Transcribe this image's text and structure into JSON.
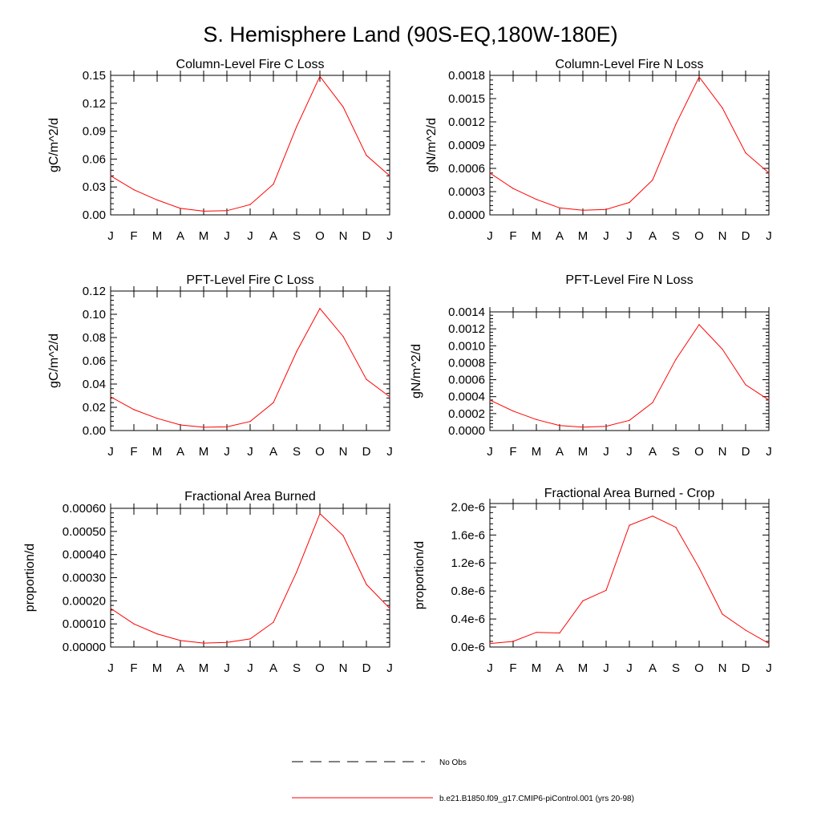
{
  "page_title": "S. Hemisphere Land (90S-EQ,180W-180E)",
  "colors": {
    "model_line": "#ff0000",
    "obs_line": "#000000",
    "axis": "#000000"
  },
  "legend": {
    "items": [
      {
        "label": "No Obs",
        "style": "dashed",
        "color": "#000000"
      },
      {
        "label": "b.e21.B1850.f09_g17.CMIP6-piControl.001 (yrs 20-98)",
        "style": "solid",
        "color": "#ff0000"
      }
    ]
  },
  "chart_data": [
    {
      "type": "line",
      "title": "Column-Level Fire C Loss",
      "ylabel": "gC/m^2/d",
      "xlabel": "",
      "categories": [
        "J",
        "F",
        "M",
        "A",
        "M",
        "J",
        "J",
        "A",
        "S",
        "O",
        "N",
        "D",
        "J"
      ],
      "ylim": [
        0,
        0.15
      ],
      "yticks": [
        "0.00",
        "0.03",
        "0.06",
        "0.09",
        "0.12",
        "0.15"
      ],
      "ytick_values": [
        0,
        0.03,
        0.06,
        0.09,
        0.12,
        0.15
      ],
      "series": [
        {
          "name": "b.e21.B1850.f09_g17.CMIP6-piControl.001 (yrs 20-98)",
          "values": [
            0.042,
            0.027,
            0.016,
            0.007,
            0.004,
            0.0045,
            0.011,
            0.033,
            0.095,
            0.149,
            0.116,
            0.064,
            0.042
          ]
        }
      ]
    },
    {
      "type": "line",
      "title": "Column-Level Fire N Loss",
      "ylabel": "gN/m^2/d",
      "xlabel": "",
      "categories": [
        "J",
        "F",
        "M",
        "A",
        "M",
        "J",
        "J",
        "A",
        "S",
        "O",
        "N",
        "D",
        "J"
      ],
      "ylim": [
        0,
        0.0018
      ],
      "yticks": [
        "0.0000",
        "0.0003",
        "0.0006",
        "0.0009",
        "0.0012",
        "0.0015",
        "0.0018"
      ],
      "ytick_values": [
        0,
        0.0003,
        0.0006,
        0.0009,
        0.0012,
        0.0015,
        0.0018
      ],
      "series": [
        {
          "name": "b.e21.B1850.f09_g17.CMIP6-piControl.001 (yrs 20-98)",
          "values": [
            0.00054,
            0.00034,
            0.0002,
            9e-05,
            6e-05,
            7e-05,
            0.00016,
            0.00045,
            0.00117,
            0.00178,
            0.00138,
            0.0008,
            0.00054
          ]
        }
      ]
    },
    {
      "type": "line",
      "title": "PFT-Level Fire C Loss",
      "ylabel": "gC/m^2/d",
      "xlabel": "",
      "categories": [
        "J",
        "F",
        "M",
        "A",
        "M",
        "J",
        "J",
        "A",
        "S",
        "O",
        "N",
        "D",
        "J"
      ],
      "ylim": [
        0,
        0.12
      ],
      "yticks": [
        "0.00",
        "0.02",
        "0.04",
        "0.06",
        "0.08",
        "0.10",
        "0.12"
      ],
      "ytick_values": [
        0,
        0.02,
        0.04,
        0.06,
        0.08,
        0.1,
        0.12
      ],
      "series": [
        {
          "name": "b.e21.B1850.f09_g17.CMIP6-piControl.001 (yrs 20-98)",
          "values": [
            0.029,
            0.018,
            0.0105,
            0.0048,
            0.0028,
            0.0032,
            0.0078,
            0.024,
            0.068,
            0.105,
            0.081,
            0.044,
            0.029
          ]
        }
      ]
    },
    {
      "type": "line",
      "title": "PFT-Level Fire N Loss",
      "ylabel": "gN/m^2/d",
      "xlabel": "",
      "categories": [
        "J",
        "F",
        "M",
        "A",
        "M",
        "J",
        "J",
        "A",
        "S",
        "O",
        "N",
        "D",
        "J"
      ],
      "ylim": [
        0,
        0.0014
      ],
      "yticks": [
        "0.0000",
        "0.0002",
        "0.0004",
        "0.0006",
        "0.0008",
        "0.0010",
        "0.0012",
        "0.0014"
      ],
      "ytick_values": [
        0,
        0.0002,
        0.0004,
        0.0006,
        0.0008,
        0.001,
        0.0012,
        0.0014
      ],
      "series": [
        {
          "name": "b.e21.B1850.f09_g17.CMIP6-piControl.001 (yrs 20-98)",
          "values": [
            0.00036,
            0.00023,
            0.00013,
            6e-05,
            4e-05,
            5e-05,
            0.00012,
            0.00033,
            0.00084,
            0.00125,
            0.00096,
            0.00054,
            0.00036
          ]
        }
      ]
    },
    {
      "type": "line",
      "title": "Fractional Area Burned",
      "ylabel": "proportion/d",
      "xlabel": "",
      "categories": [
        "J",
        "F",
        "M",
        "A",
        "M",
        "J",
        "J",
        "A",
        "S",
        "O",
        "N",
        "D",
        "J"
      ],
      "ylim": [
        0,
        0.0006
      ],
      "yticks": [
        "0.00000",
        "0.00010",
        "0.00020",
        "0.00030",
        "0.00040",
        "0.00050",
        "0.00060"
      ],
      "ytick_values": [
        0,
        0.0001,
        0.0002,
        0.0003,
        0.0004,
        0.0005,
        0.0006
      ],
      "series": [
        {
          "name": "b.e21.B1850.f09_g17.CMIP6-piControl.001 (yrs 20-98)",
          "values": [
            0.000167,
            0.0001,
            5.7e-05,
            2.8e-05,
            1.7e-05,
            2e-05,
            3.5e-05,
            0.000107,
            0.000325,
            0.000577,
            0.000482,
            0.000271,
            0.000167
          ]
        }
      ]
    },
    {
      "type": "line",
      "title": "Fractional Area Burned - Crop",
      "ylabel": "proportion/d",
      "xlabel": "",
      "categories": [
        "J",
        "F",
        "M",
        "A",
        "M",
        "J",
        "J",
        "A",
        "S",
        "O",
        "N",
        "D",
        "J"
      ],
      "ylim": [
        0,
        2.05e-06
      ],
      "yticks": [
        "0.0e-6",
        "0.4e-6",
        "0.8e-6",
        "1.2e-6",
        "1.6e-6",
        "2.0e-6"
      ],
      "ytick_values": [
        0,
        4e-07,
        8e-07,
        1.2e-06,
        1.6e-06,
        2e-06
      ],
      "series": [
        {
          "name": "b.e21.B1850.f09_g17.CMIP6-piControl.001 (yrs 20-98)",
          "values": [
            5e-08,
            8e-08,
            2.1e-07,
            2e-07,
            6.6e-07,
            8.1e-07,
            1.74e-06,
            1.87e-06,
            1.71e-06,
            1.13e-06,
            4.7e-07,
            2.4e-07,
            5e-08
          ]
        }
      ]
    }
  ]
}
